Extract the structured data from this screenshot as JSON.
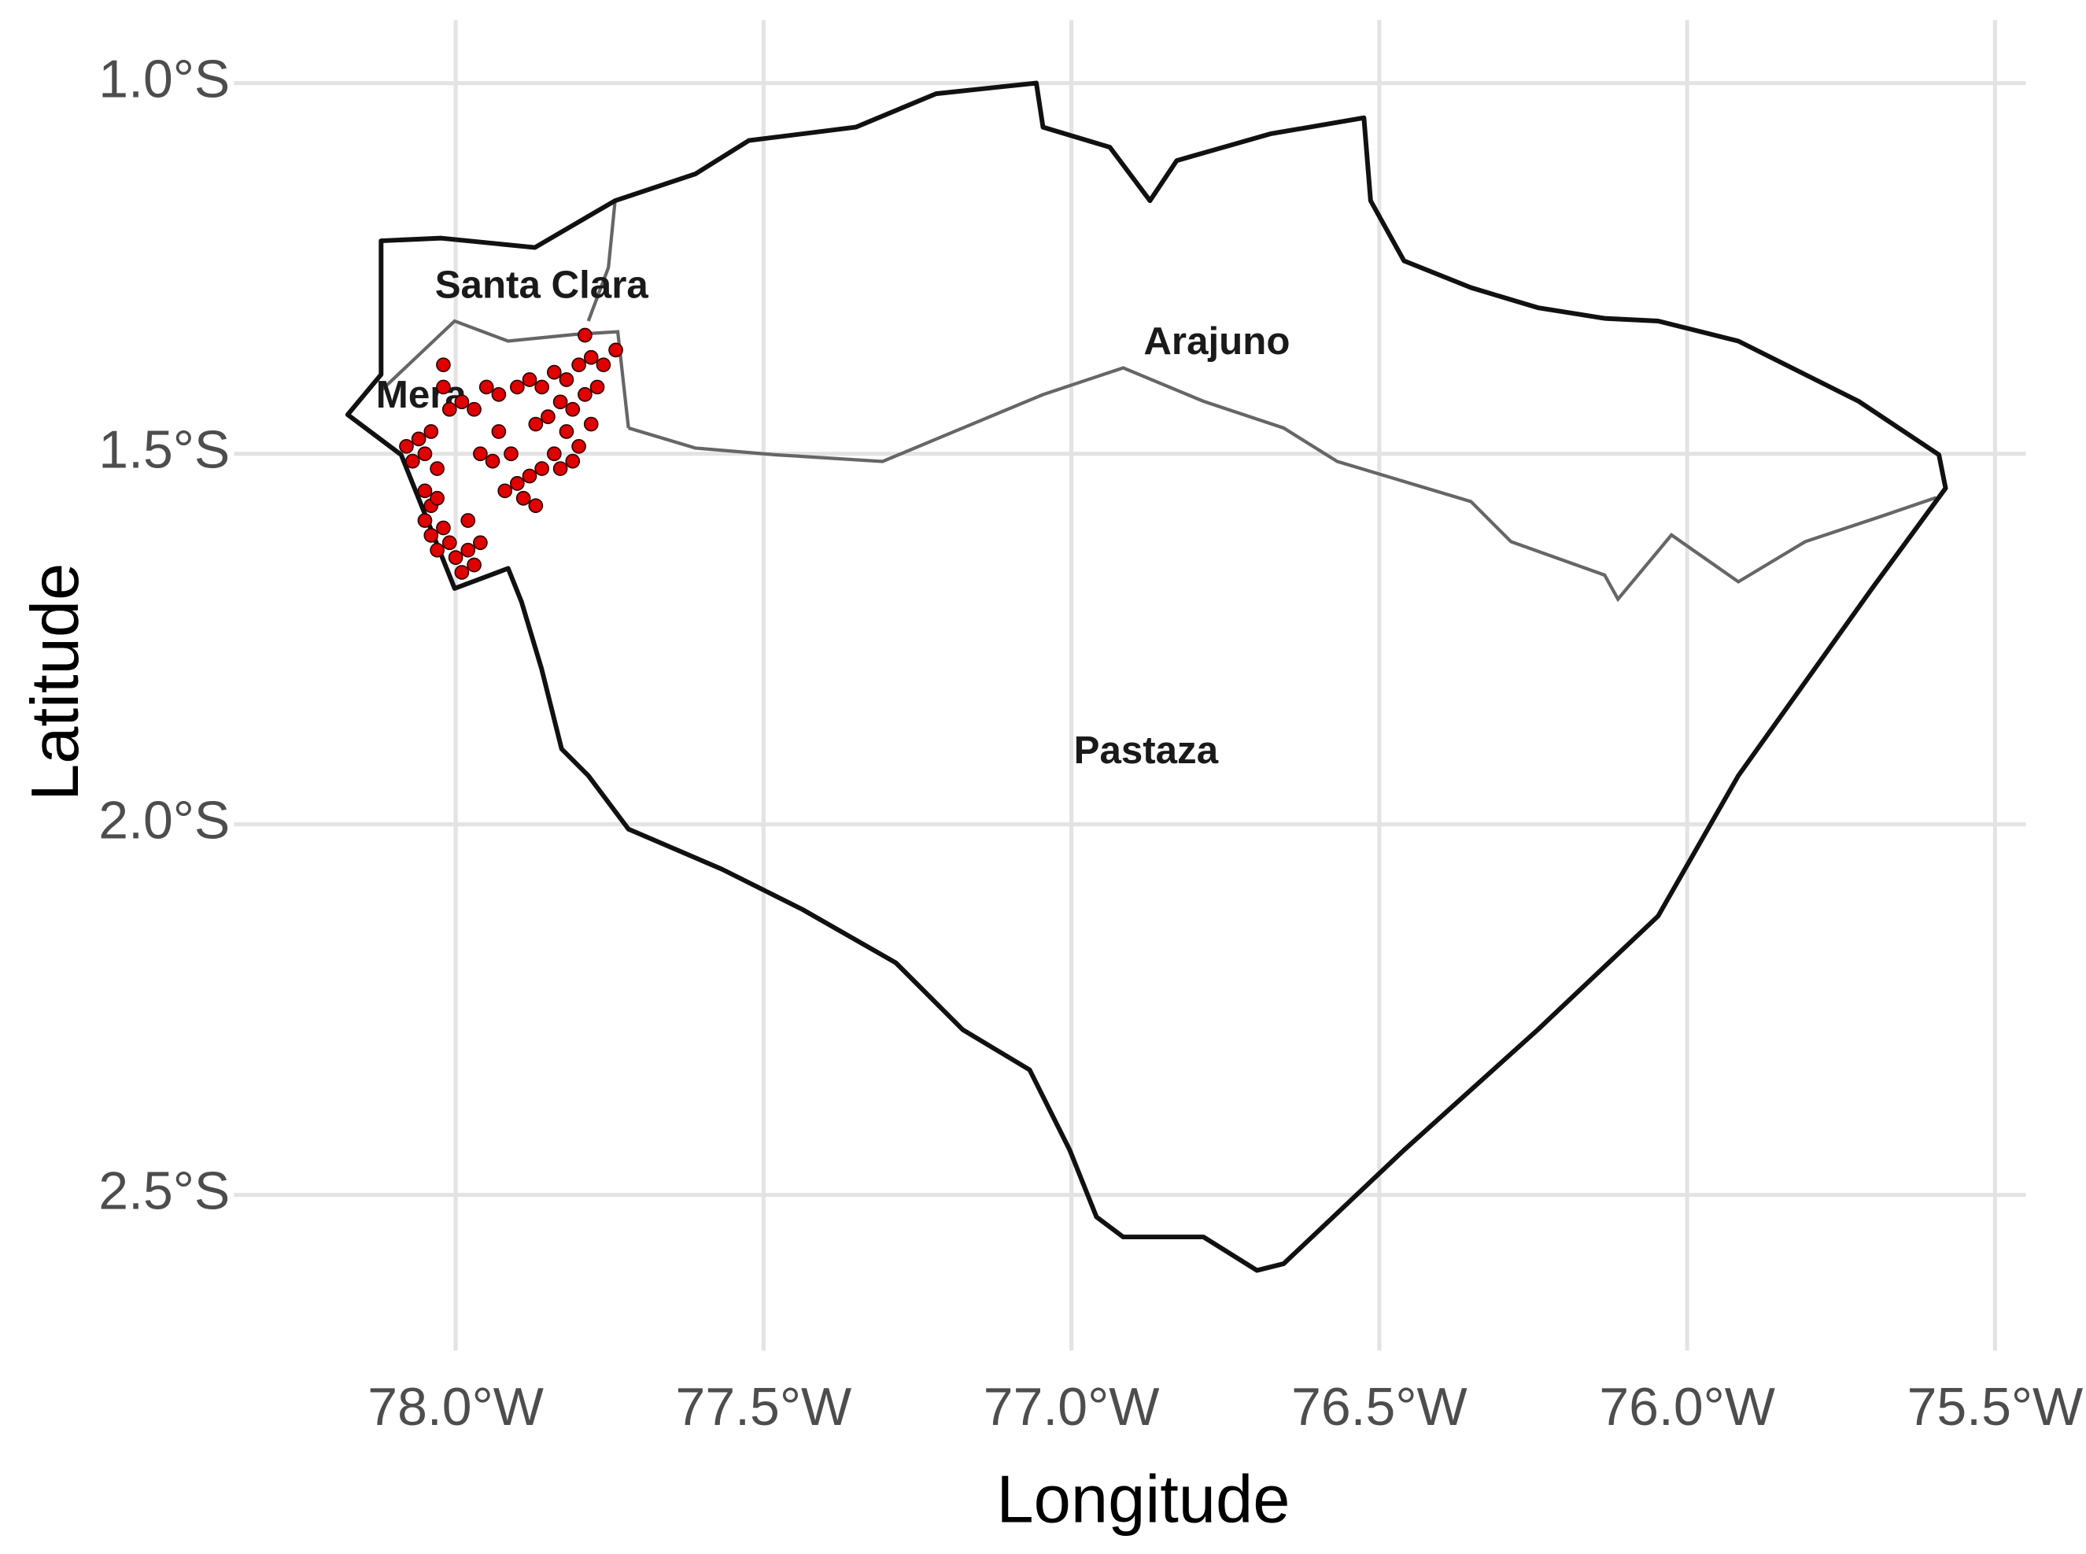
{
  "chart_data": {
    "type": "map",
    "xlabel": "Longitude",
    "ylabel": "Latitude",
    "xlim": [
      -78.36,
      -75.45
    ],
    "ylim": [
      -2.71,
      -0.915
    ],
    "xticks": [
      {
        "value": -78.0,
        "label": "78.0°W"
      },
      {
        "value": -77.5,
        "label": "77.5°W"
      },
      {
        "value": -77.0,
        "label": "77.0°W"
      },
      {
        "value": -76.5,
        "label": "76.5°W"
      },
      {
        "value": -76.0,
        "label": "76.0°W"
      },
      {
        "value": -75.5,
        "label": "75.5°W"
      }
    ],
    "yticks": [
      {
        "value": -1.0,
        "label": "1.0°S"
      },
      {
        "value": -1.5,
        "label": "1.5°S"
      },
      {
        "value": -2.0,
        "label": "2.0°S"
      },
      {
        "value": -2.5,
        "label": "2.5°S"
      }
    ],
    "grid": true,
    "regions": [
      "Santa Clara",
      "Arajuno",
      "Mera",
      "Pastaza"
    ],
    "points": {
      "color": "#e00000",
      "x": [
        -78.06,
        -78.05,
        -78.07,
        -78.04,
        -78.05,
        -78.04,
        -78.03,
        -78.05,
        -78.04,
        -78.02,
        -78.03,
        -78.01,
        -78.0,
        -77.98,
        -77.97,
        -77.99,
        -77.96,
        -77.98,
        -78.03,
        -78.02,
        -78.02,
        -78.01,
        -77.99,
        -77.97,
        -78.08,
        -77.95,
        -77.93,
        -77.9,
        -77.88,
        -77.86,
        -77.84,
        -77.82,
        -77.8,
        -77.78,
        -77.76,
        -77.74,
        -77.79,
        -77.83,
        -77.81,
        -77.79,
        -77.77,
        -77.85,
        -77.87,
        -77.82,
        -77.8,
        -77.78,
        -77.84,
        -77.86,
        -77.88,
        -77.9,
        -77.92,
        -77.89,
        -77.87,
        -77.94,
        -77.96,
        -77.91,
        -77.83,
        -77.81,
        -77.93
      ],
      "y": [
        -1.48,
        -1.5,
        -1.51,
        -1.47,
        -1.55,
        -1.57,
        -1.56,
        -1.59,
        -1.61,
        -1.6,
        -1.63,
        -1.62,
        -1.64,
        -1.63,
        -1.65,
        -1.66,
        -1.62,
        -1.59,
        -1.52,
        -1.41,
        -1.38,
        -1.44,
        -1.43,
        -1.44,
        -1.49,
        -1.41,
        -1.42,
        -1.41,
        -1.4,
        -1.41,
        -1.39,
        -1.4,
        -1.38,
        -1.37,
        -1.38,
        -1.36,
        -1.34,
        -1.43,
        -1.44,
        -1.42,
        -1.41,
        -1.45,
        -1.46,
        -1.47,
        -1.49,
        -1.46,
        -1.5,
        -1.52,
        -1.53,
        -1.54,
        -1.55,
        -1.56,
        -1.57,
        -1.51,
        -1.5,
        -1.5,
        -1.52,
        -1.51,
        -1.47
      ]
    }
  }
}
